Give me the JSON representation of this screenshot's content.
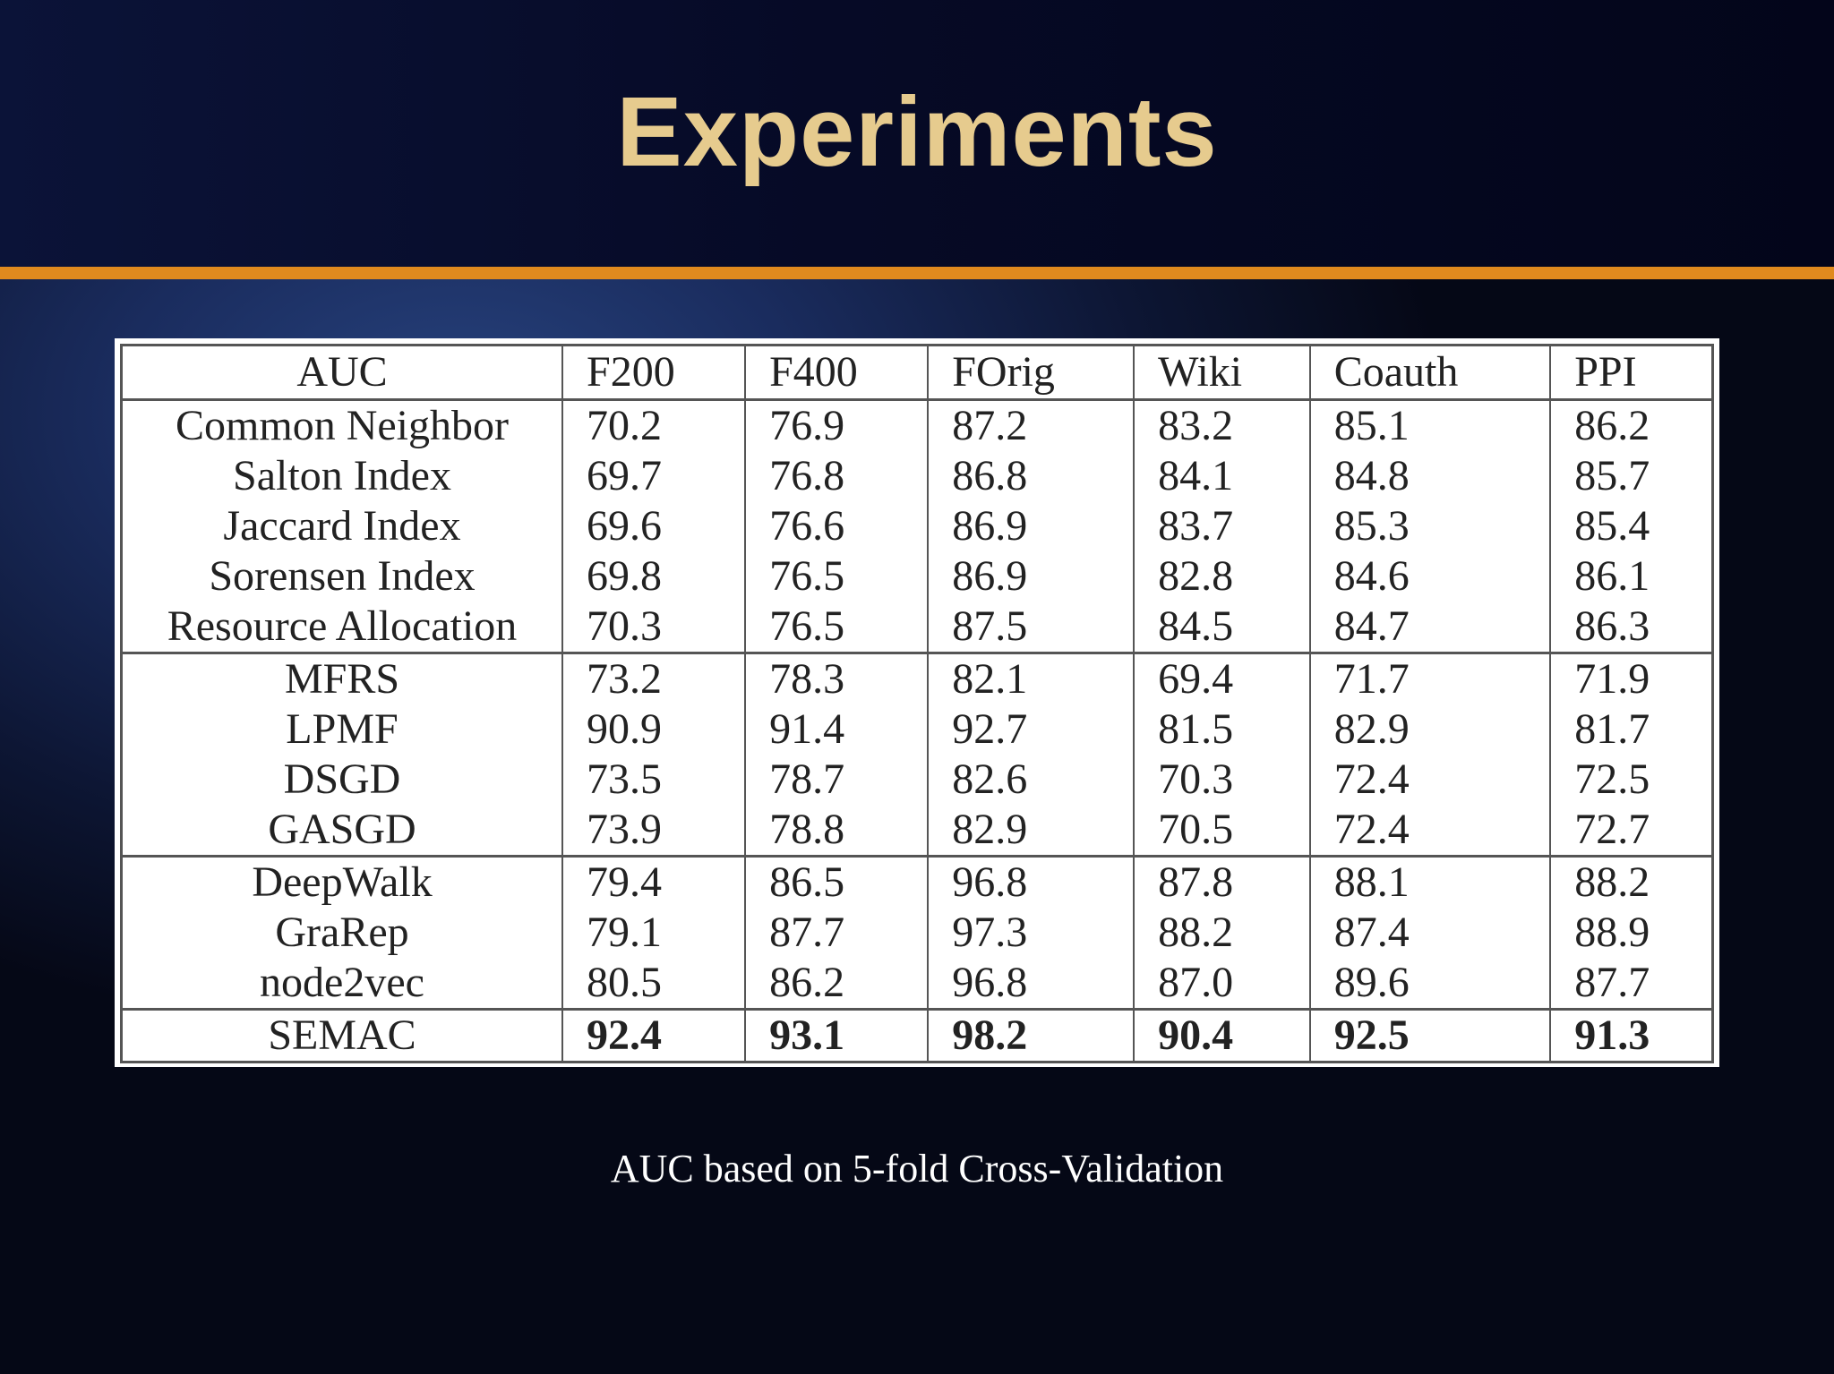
{
  "slide": {
    "title": "Experiments",
    "caption": "AUC based on 5-fold Cross-Validation"
  },
  "table": {
    "columns": [
      "AUC",
      "F200",
      "F400",
      "FOrig",
      "Wiki",
      "Coauth",
      "PPI"
    ],
    "rows": [
      {
        "method": "Common Neighbor",
        "values": [
          "70.2",
          "76.9",
          "87.2",
          "83.2",
          "85.1",
          "86.2"
        ]
      },
      {
        "method": "Salton Index",
        "values": [
          "69.7",
          "76.8",
          "86.8",
          "84.1",
          "84.8",
          "85.7"
        ]
      },
      {
        "method": "Jaccard Index",
        "values": [
          "69.6",
          "76.6",
          "86.9",
          "83.7",
          "85.3",
          "85.4"
        ]
      },
      {
        "method": "Sorensen Index",
        "values": [
          "69.8",
          "76.5",
          "86.9",
          "82.8",
          "84.6",
          "86.1"
        ]
      },
      {
        "method": "Resource Allocation",
        "values": [
          "70.3",
          "76.5",
          "87.5",
          "84.5",
          "84.7",
          "86.3"
        ]
      },
      {
        "method": "MFRS",
        "values": [
          "73.2",
          "78.3",
          "82.1",
          "69.4",
          "71.7",
          "71.9"
        ]
      },
      {
        "method": "LPMF",
        "values": [
          "90.9",
          "91.4",
          "92.7",
          "81.5",
          "82.9",
          "81.7"
        ]
      },
      {
        "method": "DSGD",
        "values": [
          "73.5",
          "78.7",
          "82.6",
          "70.3",
          "72.4",
          "72.5"
        ]
      },
      {
        "method": "GASGD",
        "values": [
          "73.9",
          "78.8",
          "82.9",
          "70.5",
          "72.4",
          "72.7"
        ]
      },
      {
        "method": "DeepWalk",
        "values": [
          "79.4",
          "86.5",
          "96.8",
          "87.8",
          "88.1",
          "88.2"
        ]
      },
      {
        "method": "GraRep",
        "values": [
          "79.1",
          "87.7",
          "97.3",
          "88.2",
          "87.4",
          "88.9"
        ]
      },
      {
        "method": "node2vec",
        "values": [
          "80.5",
          "86.2",
          "96.8",
          "87.0",
          "89.6",
          "87.7"
        ]
      },
      {
        "method": "SEMAC",
        "values": [
          "92.4",
          "93.1",
          "98.2",
          "90.4",
          "92.5",
          "91.3"
        ]
      }
    ]
  },
  "colors": {
    "title": "#e6cb8e",
    "accent_bar": "#e08a1e",
    "header_bg": "#060a26"
  }
}
